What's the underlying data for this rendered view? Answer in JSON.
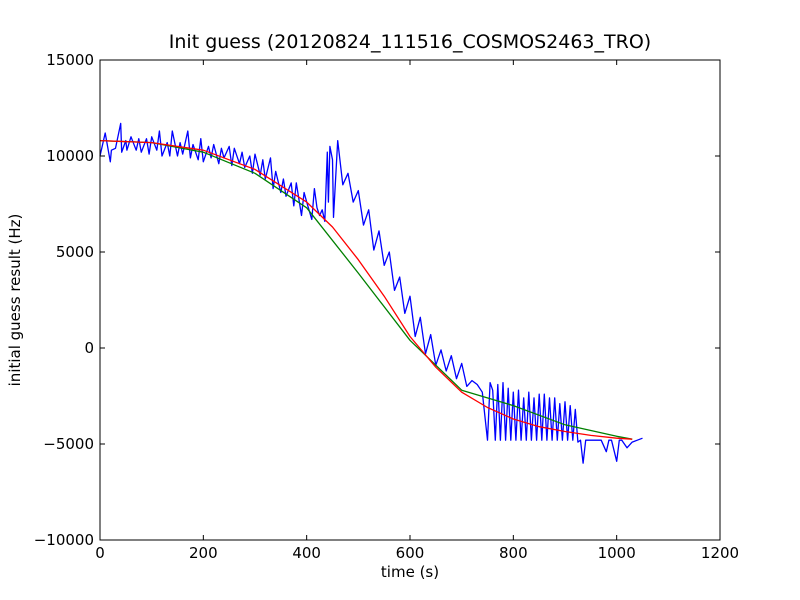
{
  "chart_data": {
    "type": "line",
    "title": "Init guess (20120824_111516_COSMOS2463_TRO)",
    "xlabel": "time (s)",
    "ylabel": "initial guess result (Hz)",
    "xlim": [
      0,
      1200
    ],
    "ylim": [
      -10000,
      15000
    ],
    "xticks": [
      0,
      200,
      400,
      600,
      800,
      1000,
      1200
    ],
    "yticks": [
      -10000,
      -5000,
      0,
      5000,
      10000,
      15000
    ],
    "xtick_labels": [
      "0",
      "200",
      "400",
      "600",
      "800",
      "1000",
      "1200"
    ],
    "ytick_labels": [
      "−10000",
      "−5000",
      "0",
      "5000",
      "10000",
      "15000"
    ],
    "grid": false,
    "series": [
      {
        "color": "#0000ff",
        "x": [
          0,
          10,
          20,
          22,
          30,
          40,
          42,
          50,
          52,
          60,
          70,
          75,
          80,
          90,
          95,
          100,
          110,
          115,
          120,
          130,
          135,
          140,
          150,
          155,
          160,
          170,
          175,
          180,
          190,
          195,
          200,
          210,
          215,
          220,
          230,
          235,
          240,
          250,
          255,
          260,
          270,
          275,
          280,
          290,
          295,
          300,
          310,
          315,
          320,
          330,
          335,
          340,
          350,
          355,
          360,
          370,
          375,
          380,
          390,
          395,
          400,
          410,
          415,
          420,
          425,
          430,
          435,
          440,
          442,
          445,
          450,
          452,
          460,
          470,
          480,
          490,
          500,
          510,
          520,
          530,
          540,
          550,
          560,
          570,
          580,
          590,
          600,
          610,
          620,
          630,
          640,
          650,
          660,
          670,
          680,
          690,
          700,
          710,
          720,
          730,
          740,
          750,
          755,
          760,
          765,
          770,
          775,
          780,
          785,
          790,
          795,
          800,
          805,
          810,
          815,
          820,
          825,
          830,
          835,
          840,
          845,
          850,
          855,
          860,
          865,
          870,
          875,
          880,
          885,
          890,
          895,
          900,
          905,
          910,
          915,
          920,
          925,
          930,
          935,
          940,
          945,
          950,
          960,
          970,
          980,
          985,
          990,
          1000,
          1005,
          1010,
          1020,
          1030,
          1040,
          1050
        ],
        "y": [
          10000,
          11200,
          9700,
          10300,
          10400,
          11700,
          10200,
          10800,
          10300,
          11000,
          10300,
          10900,
          10200,
          10900,
          10100,
          11000,
          10300,
          11300,
          10000,
          10700,
          10000,
          11300,
          10000,
          10700,
          10100,
          11300,
          9900,
          10600,
          9800,
          10900,
          9700,
          10500,
          9900,
          10600,
          9600,
          10400,
          9900,
          10500,
          9500,
          10400,
          9600,
          10200,
          9400,
          10000,
          9100,
          10100,
          9000,
          9800,
          8800,
          9900,
          8300,
          9200,
          8100,
          8800,
          7900,
          8600,
          7400,
          8600,
          6900,
          8100,
          7600,
          6700,
          8300,
          7300,
          6900,
          7200,
          6600,
          10200,
          7600,
          10500,
          9800,
          6800,
          10800,
          8500,
          9100,
          7600,
          8200,
          6400,
          7200,
          5100,
          6100,
          4300,
          5000,
          3000,
          3700,
          1800,
          2700,
          600,
          1600,
          -300,
          700,
          -900,
          -100,
          -1200,
          -400,
          -1600,
          -800,
          -2000,
          -1700,
          -1900,
          -2300,
          -4800,
          -1800,
          -2200,
          -4800,
          -1900,
          -4800,
          -1800,
          -4800,
          -2100,
          -4800,
          -2300,
          -4800,
          -2200,
          -4800,
          -2600,
          -4800,
          -2300,
          -4800,
          -2600,
          -4800,
          -2400,
          -4800,
          -2400,
          -4800,
          -2600,
          -4800,
          -2600,
          -4800,
          -2900,
          -4800,
          -2800,
          -4800,
          -3000,
          -4800,
          -3200,
          -4900,
          -4800,
          -6000,
          -4800,
          -4800,
          -4800,
          -4800,
          -4800,
          -5400,
          -4800,
          -4800,
          -5900,
          -4800,
          -4800,
          -5200,
          -4900,
          -4800,
          -4700
        ]
      },
      {
        "color": "#008000",
        "x": [
          0,
          100,
          200,
          300,
          400,
          500,
          600,
          700,
          800,
          900,
          1000,
          1030
        ],
        "y": [
          10800,
          10700,
          10200,
          9100,
          7300,
          3900,
          400,
          -2200,
          -3000,
          -4000,
          -4600,
          -4750
        ]
      },
      {
        "color": "#ff0000",
        "x": [
          0,
          100,
          200,
          300,
          400,
          450,
          500,
          550,
          600,
          650,
          700,
          750,
          800,
          850,
          900,
          950,
          1000,
          1030
        ],
        "y": [
          10800,
          10700,
          10300,
          9300,
          7600,
          6300,
          4600,
          2700,
          600,
          -1000,
          -2300,
          -3100,
          -3700,
          -4100,
          -4350,
          -4550,
          -4700,
          -4750
        ]
      }
    ]
  }
}
